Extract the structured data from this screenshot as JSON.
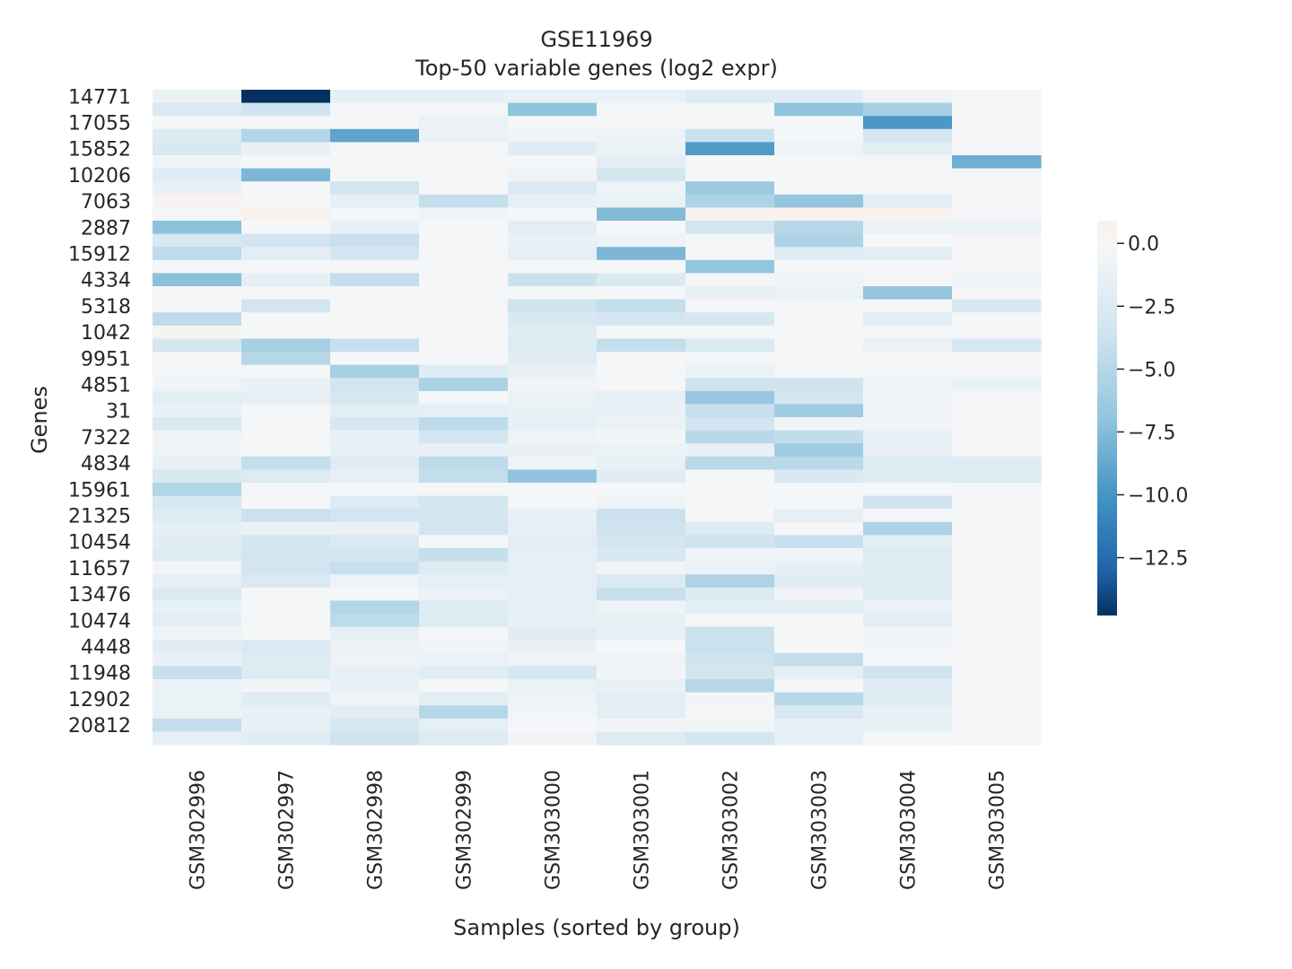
{
  "chart_data": {
    "type": "heatmap",
    "title": "GSE11969",
    "subtitle": "Top-50 variable genes (log2 expr)",
    "xlabel": "Samples (sorted by group)",
    "ylabel": "Genes",
    "columns": [
      "GSM302996",
      "GSM302997",
      "GSM302998",
      "GSM302999",
      "GSM303000",
      "GSM303001",
      "GSM303002",
      "GSM303003",
      "GSM303004",
      "GSM303005"
    ],
    "row_tick_labels": [
      "14771",
      "17055",
      "15852",
      "10206",
      "7063",
      "2887",
      "15912",
      "4334",
      "5318",
      "1042",
      "9951",
      "4851",
      "31",
      "7322",
      "4834",
      "15961",
      "21325",
      "10454",
      "11657",
      "13476",
      "10474",
      "4448",
      "11948",
      "12902",
      "20812"
    ],
    "row_count": 50,
    "colorbar": {
      "ticks": [
        0.0,
        -2.5,
        -5.0,
        -7.5,
        -10.0,
        -12.5
      ],
      "tick_labels": [
        "0.0",
        "−2.5",
        "−5.0",
        "−7.5",
        "−10.0",
        "−12.5"
      ],
      "range": [
        -14.8,
        0.9
      ]
    },
    "colormap": {
      "high": "#faf0eb",
      "mid": "#f4f6f8",
      "low": "#053061"
    },
    "values": [
      [
        -1.0,
        -14.8,
        -1.4,
        -1.4,
        -1.2,
        -1.2,
        -2.4,
        -2.0,
        -0.8,
        -0.1
      ],
      [
        -2.6,
        -3.6,
        -0.2,
        -0.2,
        -7.0,
        -0.2,
        -0.2,
        -7.0,
        -5.8,
        -0.1
      ],
      [
        -0.2,
        -0.2,
        -0.2,
        -1.0,
        -0.2,
        -0.2,
        -0.2,
        -0.2,
        -9.8,
        -0.1
      ],
      [
        -2.4,
        -5.2,
        -9.0,
        -1.0,
        -0.5,
        -0.8,
        -3.8,
        -0.2,
        -3.2,
        -0.1
      ],
      [
        -2.8,
        -1.2,
        -0.2,
        -0.2,
        -2.2,
        -1.0,
        -9.6,
        -0.8,
        -1.8,
        -0.1
      ],
      [
        -0.6,
        -0.2,
        -0.2,
        -0.2,
        -0.2,
        -1.8,
        -0.2,
        -0.2,
        -0.2,
        -8.4
      ],
      [
        -2.2,
        -7.8,
        -0.2,
        -0.2,
        -0.8,
        -3.2,
        -0.2,
        -0.2,
        -0.2,
        -0.1
      ],
      [
        -1.2,
        -0.2,
        -3.4,
        -0.2,
        -2.6,
        -0.8,
        -6.4,
        -0.2,
        -0.2,
        -0.1
      ],
      [
        0.5,
        -0.2,
        -1.6,
        -4.2,
        -1.6,
        -1.0,
        -5.4,
        -6.8,
        -1.8,
        -0.1
      ],
      [
        -0.2,
        0.6,
        -0.2,
        -0.6,
        -0.2,
        -7.6,
        0.5,
        0.8,
        0.6,
        -0.1
      ],
      [
        -7.2,
        -0.2,
        -1.4,
        -0.2,
        -1.8,
        -0.2,
        -3.4,
        -5.0,
        -1.0,
        -1.0
      ],
      [
        -3.0,
        -3.4,
        -4.0,
        -0.2,
        -1.2,
        -0.8,
        -0.2,
        -5.4,
        -0.2,
        -0.1
      ],
      [
        -4.6,
        -1.8,
        -3.2,
        -0.2,
        -1.6,
        -7.8,
        -0.2,
        -2.2,
        -1.8,
        -0.1
      ],
      [
        -0.2,
        -0.2,
        -0.2,
        -0.2,
        -0.2,
        -0.2,
        -6.8,
        -0.2,
        -0.2,
        -0.1
      ],
      [
        -7.2,
        -1.6,
        -4.2,
        -0.2,
        -3.8,
        -2.6,
        -0.2,
        -0.6,
        -0.2,
        -0.6
      ],
      [
        -0.2,
        -0.2,
        -0.2,
        -0.2,
        -0.2,
        -0.2,
        -1.4,
        -1.0,
        -6.8,
        -0.1
      ],
      [
        -0.2,
        -3.4,
        -0.2,
        -0.2,
        -3.6,
        -4.2,
        -0.2,
        -0.2,
        -0.2,
        -2.8
      ],
      [
        -4.6,
        -0.2,
        -0.2,
        -0.2,
        -2.8,
        -3.2,
        -3.0,
        -0.2,
        -2.0,
        -0.1
      ],
      [
        0.4,
        -0.2,
        -0.2,
        -0.2,
        -2.2,
        -0.2,
        -0.2,
        -0.2,
        -0.2,
        -0.1
      ],
      [
        -3.2,
        -5.8,
        -4.0,
        -0.2,
        -2.4,
        -4.2,
        -2.6,
        -0.2,
        -1.2,
        -3.0
      ],
      [
        -0.2,
        -5.0,
        -0.2,
        -0.2,
        -2.2,
        -0.2,
        -0.2,
        -0.2,
        -0.2,
        -0.1
      ],
      [
        -0.2,
        -0.2,
        -5.8,
        -2.0,
        -1.2,
        -0.2,
        -1.0,
        -0.2,
        -0.2,
        -0.1
      ],
      [
        -0.6,
        -1.2,
        -3.4,
        -5.6,
        -0.6,
        -0.2,
        -3.6,
        -3.6,
        -0.6,
        -1.0
      ],
      [
        -1.8,
        -1.6,
        -3.0,
        -0.2,
        -1.0,
        -1.6,
        -6.6,
        -3.4,
        -0.6,
        -0.1
      ],
      [
        -1.2,
        -0.2,
        -1.8,
        -1.6,
        -1.2,
        -1.2,
        -4.0,
        -6.2,
        -0.6,
        -0.1
      ],
      [
        -2.8,
        -0.2,
        -3.0,
        -4.6,
        -1.6,
        -1.0,
        -3.4,
        -0.6,
        -0.6,
        -0.1
      ],
      [
        -0.8,
        -0.2,
        -1.2,
        -3.4,
        -0.8,
        -0.4,
        -4.8,
        -4.4,
        -1.2,
        -0.1
      ],
      [
        -0.6,
        -0.2,
        -1.4,
        -1.2,
        -1.2,
        -1.0,
        -1.2,
        -6.2,
        -1.2,
        -0.1
      ],
      [
        -1.4,
        -4.2,
        -2.2,
        -4.6,
        -0.8,
        -1.4,
        -4.8,
        -4.8,
        -2.4,
        -2.4
      ],
      [
        -2.8,
        -2.4,
        -1.6,
        -4.2,
        -7.0,
        -2.0,
        -0.2,
        -2.8,
        -2.2,
        -2.4
      ],
      [
        -5.2,
        -0.2,
        -0.2,
        -0.2,
        -0.2,
        -0.2,
        -0.2,
        -0.2,
        -0.2,
        -0.1
      ],
      [
        -3.0,
        -0.2,
        -2.4,
        -3.2,
        -0.2,
        -0.8,
        -0.2,
        -0.2,
        -3.6,
        -0.1
      ],
      [
        -2.4,
        -3.8,
        -3.4,
        -3.2,
        -1.4,
        -3.8,
        -0.2,
        -1.6,
        -0.2,
        -0.1
      ],
      [
        -1.6,
        -1.2,
        -1.0,
        -3.4,
        -1.6,
        -3.6,
        -2.4,
        -0.2,
        -5.4,
        -0.1
      ],
      [
        -2.0,
        -3.2,
        -2.6,
        -0.2,
        -1.8,
        -3.2,
        -3.6,
        -4.0,
        -1.8,
        -0.1
      ],
      [
        -2.4,
        -3.4,
        -3.2,
        -4.2,
        -1.6,
        -2.8,
        -0.6,
        -0.6,
        -2.4,
        -0.1
      ],
      [
        -0.4,
        -3.4,
        -4.0,
        -2.4,
        -1.6,
        -0.4,
        -1.0,
        -1.6,
        -2.4,
        -0.1
      ],
      [
        -1.6,
        -2.6,
        -0.8,
        -1.6,
        -1.6,
        -2.6,
        -5.4,
        -2.0,
        -2.4,
        -0.1
      ],
      [
        -2.6,
        -0.2,
        -0.2,
        -1.0,
        -1.6,
        -4.0,
        -2.6,
        -0.6,
        -2.4,
        -0.1
      ],
      [
        -1.4,
        -0.2,
        -5.2,
        -2.4,
        -1.6,
        -0.8,
        -1.8,
        -1.8,
        -1.0,
        -0.1
      ],
      [
        -1.8,
        -0.2,
        -4.6,
        -2.4,
        -1.2,
        -1.4,
        -0.2,
        -0.2,
        -1.8,
        -0.1
      ],
      [
        -0.8,
        -0.2,
        -1.6,
        -0.2,
        -2.2,
        -1.4,
        -3.8,
        -0.2,
        -0.4,
        -0.1
      ],
      [
        -2.0,
        -2.6,
        -1.0,
        -0.6,
        -1.2,
        -0.2,
        -3.8,
        -0.2,
        -0.4,
        -0.1
      ],
      [
        -1.2,
        -2.4,
        -0.8,
        -1.0,
        -0.8,
        -0.8,
        -3.6,
        -4.2,
        -0.2,
        -0.1
      ],
      [
        -4.0,
        -2.4,
        -1.4,
        -2.0,
        -3.0,
        -0.4,
        -3.4,
        -1.6,
        -3.6,
        -0.1
      ],
      [
        -1.0,
        -0.4,
        -1.4,
        -0.2,
        -1.0,
        -1.4,
        -5.0,
        -0.2,
        -2.0,
        -0.1
      ],
      [
        -1.0,
        -2.2,
        -0.8,
        -1.8,
        -0.8,
        -1.8,
        -0.4,
        -4.8,
        -2.2,
        -0.1
      ],
      [
        -1.0,
        -1.4,
        -1.8,
        -5.0,
        -0.4,
        -1.8,
        -0.2,
        -2.8,
        -1.4,
        -0.1
      ],
      [
        -4.2,
        -1.4,
        -3.0,
        -1.6,
        -0.2,
        -0.4,
        -0.4,
        -1.2,
        -1.4,
        -0.1
      ],
      [
        -1.6,
        -2.0,
        -3.6,
        -2.4,
        -0.6,
        -2.4,
        -3.2,
        -1.6,
        -0.2,
        -0.1
      ]
    ]
  }
}
